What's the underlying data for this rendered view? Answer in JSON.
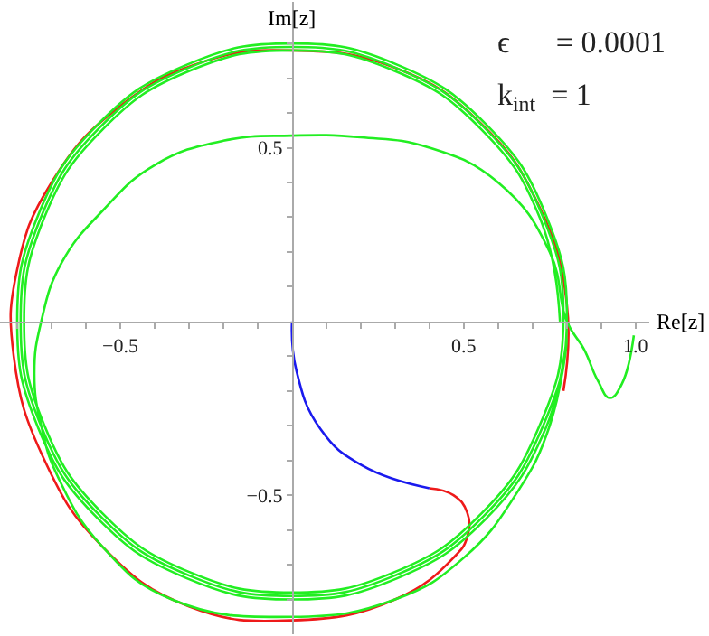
{
  "chart_data": {
    "type": "line",
    "xlabel": "Re[z]",
    "ylabel": "Im[z]",
    "annotations": [
      "ϵ      = 0.0001",
      "k$_{int}$  = 1"
    ],
    "xlim": [
      -0.85,
      1.04
    ],
    "ylim": [
      -0.9,
      0.92
    ],
    "xticks": [
      {
        "value": -0.5,
        "label": "−0.5"
      },
      0.5,
      {
        "value": 1,
        "label": "1.0"
      },
      {
        "value": -0.8,
        "label": null
      },
      {
        "value": -0.7,
        "label": null
      },
      {
        "value": -0.6,
        "label": null
      },
      {
        "value": -0.4,
        "label": null
      },
      {
        "value": -0.3,
        "label": null
      },
      {
        "value": -0.2,
        "label": null
      },
      {
        "value": -0.1,
        "label": null
      },
      {
        "value": 0.1,
        "label": null
      },
      {
        "value": 0.2,
        "label": null
      },
      {
        "value": 0.3,
        "label": null
      },
      {
        "value": 0.4,
        "label": null
      },
      {
        "value": 0.6,
        "label": null
      },
      {
        "value": 0.7,
        "label": null
      },
      {
        "value": 0.8,
        "label": null
      },
      {
        "value": 0.9,
        "label": null
      }
    ],
    "yticks": [
      0.5,
      {
        "value": -0.5,
        "label": "−0.5"
      },
      {
        "value": -0.8,
        "label": null
      },
      {
        "value": -0.7,
        "label": null
      },
      {
        "value": -0.6,
        "label": null
      },
      {
        "value": -0.4,
        "label": null
      },
      {
        "value": -0.3,
        "label": null
      },
      {
        "value": -0.2,
        "label": null
      },
      {
        "value": -0.1,
        "label": null
      },
      {
        "value": 0.1,
        "label": null
      },
      {
        "value": 0.2,
        "label": null
      },
      {
        "value": 0.3,
        "label": null
      },
      {
        "value": 0.4,
        "label": null
      },
      {
        "value": 0.6,
        "label": null
      },
      {
        "value": 0.7,
        "label": null
      },
      {
        "value": 0.8,
        "label": null
      }
    ],
    "grid": false,
    "marker": "none",
    "line_style": "solid",
    "series": [
      {
        "color": "#1a1aee",
        "x": [
          0,
          0.012,
          0.083,
          0.205,
          0.4
        ],
        "values": [
          0,
          -0.138,
          -0.31,
          -0.415,
          -0.48
        ]
      },
      {
        "color": "#ee1a1a",
        "x": [
          0.4,
          0.47,
          0.51,
          0.51,
          0.47,
          0.3,
          0,
          -0.3,
          -0.55,
          -0.72,
          -0.81,
          -0.8,
          -0.7,
          -0.5,
          -0.25,
          0,
          0.3,
          0.55,
          0.72,
          0.8,
          0.79
        ],
        "values": [
          -0.48,
          -0.5,
          -0.55,
          -0.62,
          -0.68,
          -0.8,
          -0.86,
          -0.82,
          -0.65,
          -0.4,
          -0.1,
          0.15,
          0.4,
          0.62,
          0.75,
          0.78,
          0.73,
          0.57,
          0.33,
          0.05,
          -0.2
        ]
      },
      {
        "color": "#22ee22",
        "x": [
          0.995,
          0.96,
          0.925,
          0.89,
          0.85,
          0.8,
          0.75,
          0.6,
          0.4,
          0.2,
          0,
          -0.2,
          -0.4,
          -0.55,
          -0.67,
          -0.73,
          -0.75,
          -0.73,
          -0.68,
          -0.55,
          -0.35,
          0,
          0.3,
          0.5,
          0.65,
          0.75,
          0.8,
          0.739,
          0.566,
          0.306,
          0,
          -0.306,
          -0.566,
          -0.739,
          -0.8,
          -0.739,
          -0.566,
          -0.306,
          0,
          0.306,
          0.566,
          0.739,
          0.8,
          0.73,
          0.559,
          0.302,
          0,
          -0.302,
          -0.559,
          -0.73,
          -0.79,
          -0.73,
          -0.559,
          -0.302,
          0,
          0.302,
          0.559,
          0.73,
          0.79,
          0.721,
          0.552,
          0.299,
          0,
          -0.299,
          -0.552,
          -0.721,
          -0.78,
          -0.721,
          -0.552,
          -0.299,
          0,
          0.299,
          0.552,
          0.721,
          0.78
        ],
        "values": [
          -0.04,
          -0.18,
          -0.22,
          -0.17,
          -0.08,
          0,
          0.2,
          0.4,
          0.5,
          0.53,
          0.535,
          0.52,
          0.45,
          0.32,
          0.17,
          0,
          -0.15,
          -0.3,
          -0.45,
          -0.65,
          -0.8,
          -0.85,
          -0.8,
          -0.68,
          -0.5,
          -0.3,
          -0.05,
          -0.306,
          -0.566,
          -0.739,
          -0.8,
          -0.739,
          -0.566,
          -0.306,
          0,
          0.306,
          0.566,
          0.739,
          0.8,
          0.739,
          0.566,
          0.306,
          0,
          -0.302,
          -0.559,
          -0.73,
          -0.79,
          -0.73,
          -0.559,
          -0.302,
          0,
          0.302,
          0.559,
          0.73,
          0.79,
          0.73,
          0.559,
          0.302,
          0,
          -0.299,
          -0.552,
          -0.721,
          -0.78,
          -0.721,
          -0.552,
          -0.299,
          0,
          0.299,
          0.552,
          0.721,
          0.78,
          0.721,
          0.552,
          0.299,
          0
        ]
      }
    ]
  }
}
